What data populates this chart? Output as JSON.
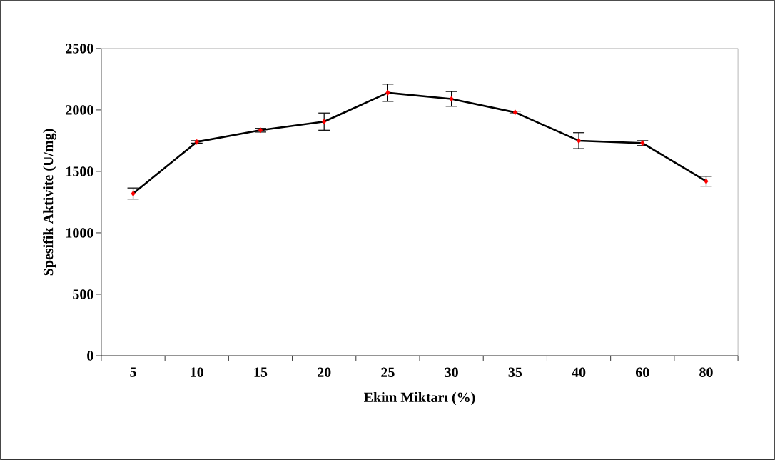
{
  "chart_data": {
    "type": "line",
    "xlabel": "Ekim Miktarı (%)",
    "ylabel": "Spesifik Aktivite (U/mg)",
    "categories": [
      "5",
      "10",
      "15",
      "20",
      "25",
      "30",
      "35",
      "40",
      "60",
      "80"
    ],
    "values": [
      1320,
      1740,
      1835,
      1905,
      2140,
      2090,
      1980,
      1750,
      1730,
      1420
    ],
    "errors": [
      45,
      10,
      15,
      70,
      70,
      60,
      10,
      65,
      20,
      40
    ],
    "color": "#000000",
    "colors": [
      "#ff0000",
      "#ff0000",
      "#ff0000",
      "#ff0000",
      "#ff0000",
      "#ff0000",
      "#ff0000",
      "#ff0000",
      "#ff0000",
      "#ff0000"
    ],
    "marker": "diamond",
    "line_style": "solid",
    "ylim": [
      0,
      2500
    ],
    "yticks": [
      0,
      500,
      1000,
      1500,
      2000,
      2500
    ],
    "grid": false
  }
}
